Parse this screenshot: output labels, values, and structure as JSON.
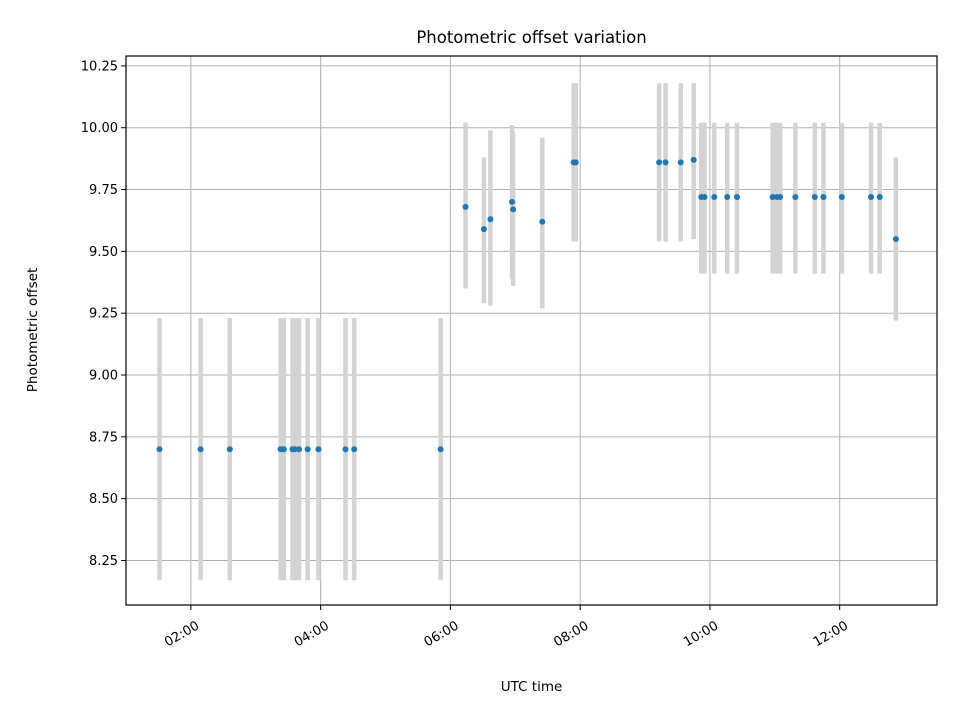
{
  "chart_data": {
    "type": "scatter",
    "title": "Photometric offset variation",
    "xlabel": "UTC time",
    "ylabel": "Photometric offset",
    "x_unit": "time of day (HH:MM, UTC)",
    "xlim": [
      "01:00",
      "13:30"
    ],
    "ylim": [
      8.07,
      10.29
    ],
    "x_ticks": [
      "02:00",
      "04:00",
      "06:00",
      "08:00",
      "10:00",
      "12:00"
    ],
    "y_ticks": [
      "8.25",
      "8.50",
      "8.75",
      "9.00",
      "9.25",
      "9.50",
      "9.75",
      "10.00",
      "10.25"
    ],
    "grid": true,
    "legend": "none",
    "marker_color": "#1f77b4",
    "errorbar_color": "#d3d3d3",
    "series": [
      {
        "points": [
          {
            "x": "01:31",
            "y": 8.7,
            "yerr_low": 8.17,
            "yerr_high": 9.23
          },
          {
            "x": "02:09",
            "y": 8.7,
            "yerr_low": 8.17,
            "yerr_high": 9.23
          },
          {
            "x": "02:36",
            "y": 8.7,
            "yerr_low": 8.17,
            "yerr_high": 9.23
          },
          {
            "x": "03:23",
            "y": 8.7,
            "yerr_low": 8.17,
            "yerr_high": 9.23
          },
          {
            "x": "03:26",
            "y": 8.7,
            "yerr_low": 8.17,
            "yerr_high": 9.23
          },
          {
            "x": "03:34",
            "y": 8.7,
            "yerr_low": 8.17,
            "yerr_high": 9.23
          },
          {
            "x": "03:36",
            "y": 8.7,
            "yerr_low": 8.17,
            "yerr_high": 9.23
          },
          {
            "x": "03:40",
            "y": 8.7,
            "yerr_low": 8.17,
            "yerr_high": 9.23
          },
          {
            "x": "03:48",
            "y": 8.7,
            "yerr_low": 8.17,
            "yerr_high": 9.23
          },
          {
            "x": "03:58",
            "y": 8.7,
            "yerr_low": 8.17,
            "yerr_high": 9.23
          },
          {
            "x": "04:23",
            "y": 8.7,
            "yerr_low": 8.17,
            "yerr_high": 9.23
          },
          {
            "x": "04:31",
            "y": 8.7,
            "yerr_low": 8.17,
            "yerr_high": 9.23
          },
          {
            "x": "05:51",
            "y": 8.7,
            "yerr_low": 8.17,
            "yerr_high": 9.23
          },
          {
            "x": "06:14",
            "y": 9.68,
            "yerr_low": 9.35,
            "yerr_high": 10.02
          },
          {
            "x": "06:31",
            "y": 9.59,
            "yerr_low": 9.29,
            "yerr_high": 9.88
          },
          {
            "x": "06:37",
            "y": 9.63,
            "yerr_low": 9.28,
            "yerr_high": 9.99
          },
          {
            "x": "06:57",
            "y": 9.7,
            "yerr_low": 9.39,
            "yerr_high": 10.01
          },
          {
            "x": "06:58",
            "y": 9.67,
            "yerr_low": 9.36,
            "yerr_high": 9.98
          },
          {
            "x": "07:25",
            "y": 9.62,
            "yerr_low": 9.27,
            "yerr_high": 9.96
          },
          {
            "x": "07:54",
            "y": 9.86,
            "yerr_low": 9.54,
            "yerr_high": 10.18
          },
          {
            "x": "07:56",
            "y": 9.86,
            "yerr_low": 9.54,
            "yerr_high": 10.18
          },
          {
            "x": "09:13",
            "y": 9.86,
            "yerr_low": 9.54,
            "yerr_high": 10.18
          },
          {
            "x": "09:19",
            "y": 9.86,
            "yerr_low": 9.54,
            "yerr_high": 10.18
          },
          {
            "x": "09:33",
            "y": 9.86,
            "yerr_low": 9.54,
            "yerr_high": 10.18
          },
          {
            "x": "09:45",
            "y": 9.87,
            "yerr_low": 9.55,
            "yerr_high": 10.18
          },
          {
            "x": "09:52",
            "y": 9.72,
            "yerr_low": 9.41,
            "yerr_high": 10.02
          },
          {
            "x": "09:55",
            "y": 9.72,
            "yerr_low": 9.41,
            "yerr_high": 10.02
          },
          {
            "x": "10:04",
            "y": 9.72,
            "yerr_low": 9.41,
            "yerr_high": 10.02
          },
          {
            "x": "10:16",
            "y": 9.72,
            "yerr_low": 9.41,
            "yerr_high": 10.02
          },
          {
            "x": "10:25",
            "y": 9.72,
            "yerr_low": 9.41,
            "yerr_high": 10.02
          },
          {
            "x": "10:58",
            "y": 9.72,
            "yerr_low": 9.41,
            "yerr_high": 10.02
          },
          {
            "x": "11:02",
            "y": 9.72,
            "yerr_low": 9.41,
            "yerr_high": 10.02
          },
          {
            "x": "11:05",
            "y": 9.72,
            "yerr_low": 9.41,
            "yerr_high": 10.02
          },
          {
            "x": "11:19",
            "y": 9.72,
            "yerr_low": 9.41,
            "yerr_high": 10.02
          },
          {
            "x": "11:37",
            "y": 9.72,
            "yerr_low": 9.41,
            "yerr_high": 10.02
          },
          {
            "x": "11:45",
            "y": 9.72,
            "yerr_low": 9.41,
            "yerr_high": 10.02
          },
          {
            "x": "12:02",
            "y": 9.72,
            "yerr_low": 9.41,
            "yerr_high": 10.02
          },
          {
            "x": "12:29",
            "y": 9.72,
            "yerr_low": 9.41,
            "yerr_high": 10.02
          },
          {
            "x": "12:37",
            "y": 9.72,
            "yerr_low": 9.41,
            "yerr_high": 10.02
          },
          {
            "x": "12:52",
            "y": 9.55,
            "yerr_low": 9.22,
            "yerr_high": 9.88
          }
        ]
      }
    ]
  }
}
